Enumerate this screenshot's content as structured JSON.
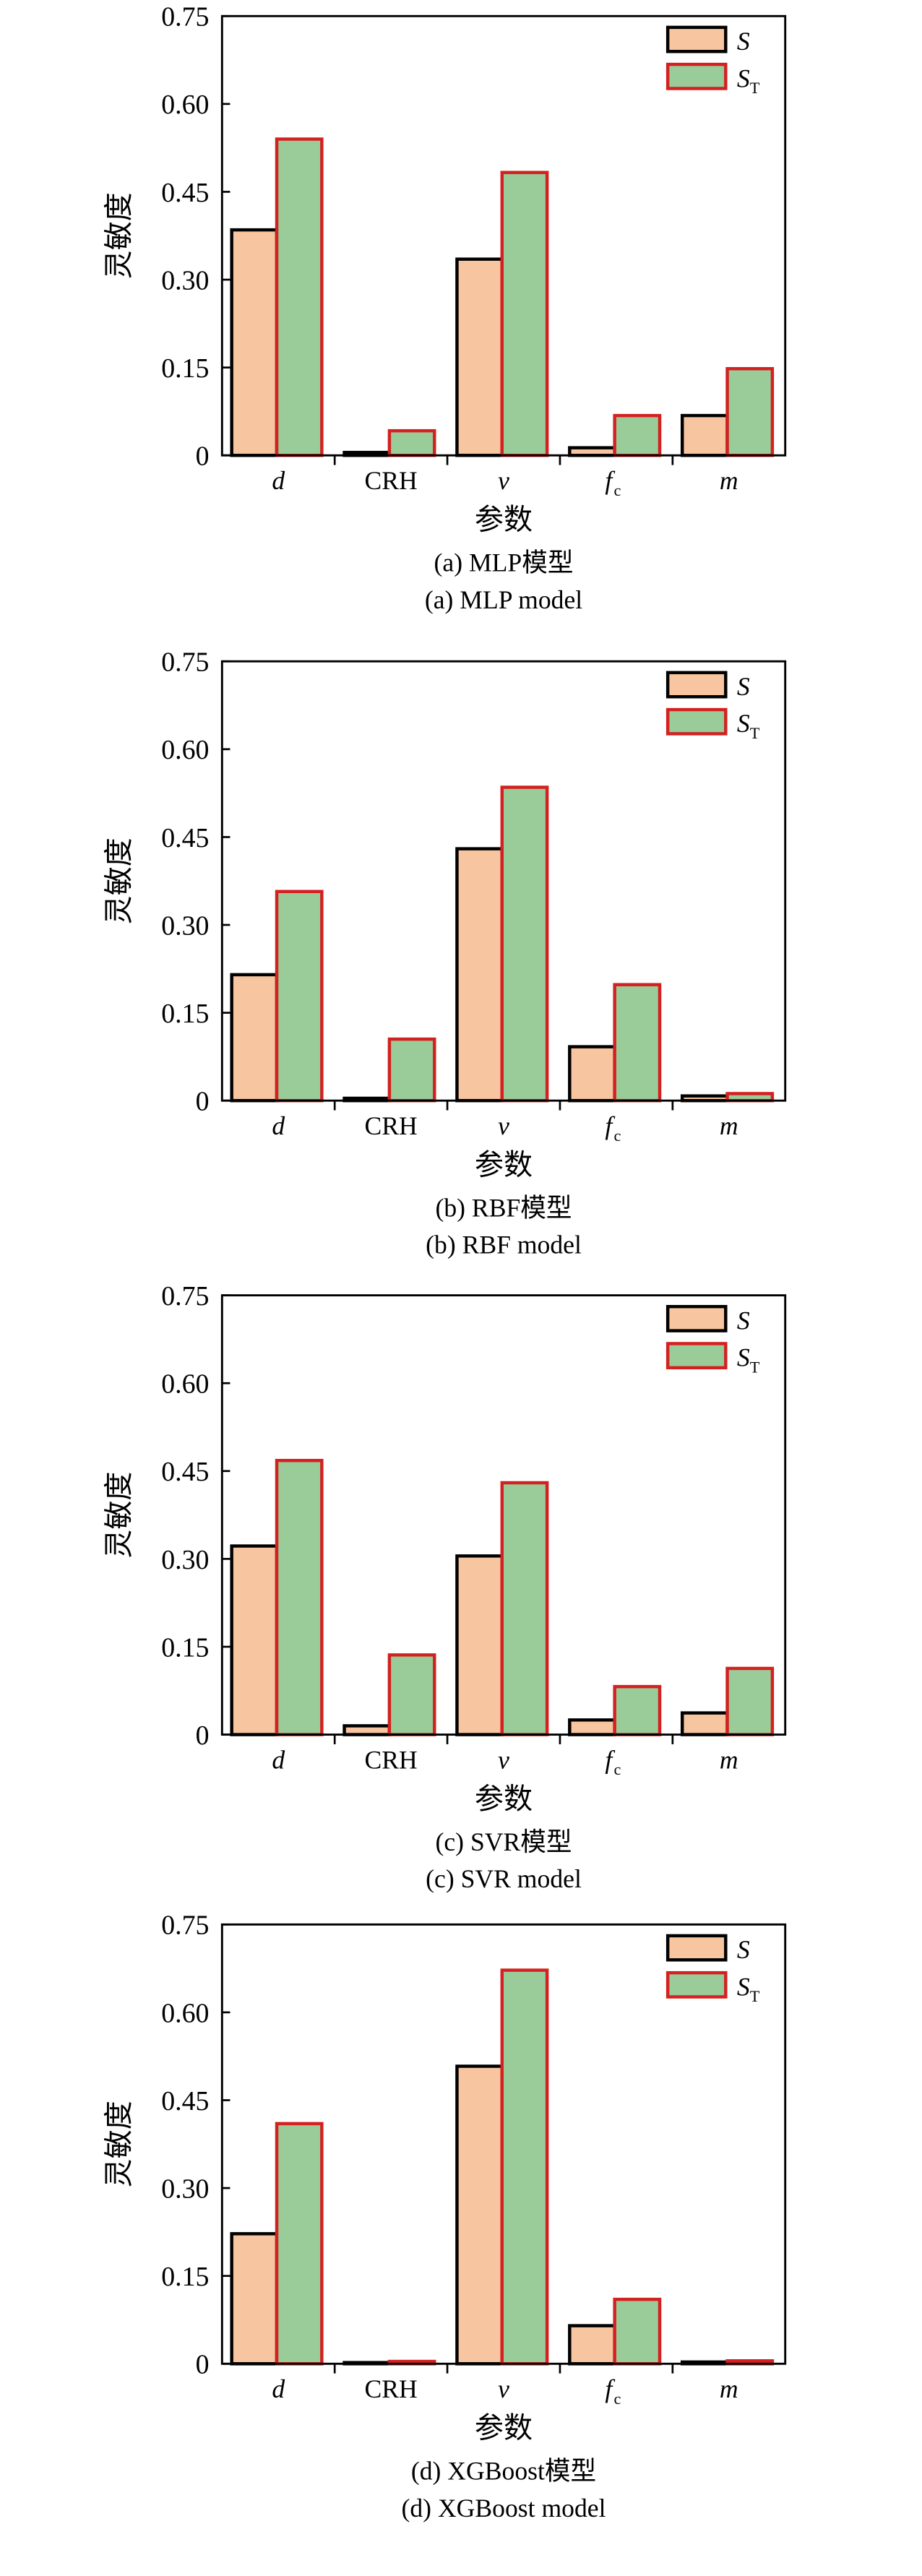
{
  "colors": {
    "S_fill": "#f7c59f",
    "S_stroke": "#000000",
    "ST_fill": "#99cc99",
    "ST_stroke": "#d42020"
  },
  "chart_data": [
    {
      "type": "bar",
      "caption_cn": "(a) MLP模型",
      "caption_en": "(a) MLP model",
      "ylabel": "灵敏度",
      "xlabel": "参数",
      "ylim": [
        0,
        0.75
      ],
      "yticks": [
        "0",
        "0.15",
        "0.30",
        "0.45",
        "0.60",
        "0.75"
      ],
      "categories": [
        "d",
        "CRH",
        "v",
        "f_c",
        "m"
      ],
      "legend": "top-right",
      "series": [
        {
          "name": "S",
          "values": [
            0.385,
            0.005,
            0.335,
            0.013,
            0.068
          ]
        },
        {
          "name": "S_T",
          "values": [
            0.54,
            0.042,
            0.483,
            0.068,
            0.148
          ]
        }
      ]
    },
    {
      "type": "bar",
      "caption_cn": "(b) RBF模型",
      "caption_en": "(b) RBF model",
      "ylabel": "灵敏度",
      "xlabel": "参数",
      "ylim": [
        0,
        0.75
      ],
      "yticks": [
        "0",
        "0.15",
        "0.30",
        "0.45",
        "0.60",
        "0.75"
      ],
      "categories": [
        "d",
        "CRH",
        "v",
        "f_c",
        "m"
      ],
      "legend": "top-right",
      "series": [
        {
          "name": "S",
          "values": [
            0.215,
            0.004,
            0.43,
            0.092,
            0.008
          ]
        },
        {
          "name": "S_T",
          "values": [
            0.357,
            0.105,
            0.535,
            0.198,
            0.012
          ]
        }
      ]
    },
    {
      "type": "bar",
      "caption_cn": "(c) SVR模型",
      "caption_en": "(c) SVR model",
      "ylabel": "灵敏度",
      "xlabel": "参数",
      "ylim": [
        0,
        0.75
      ],
      "yticks": [
        "0",
        "0.15",
        "0.30",
        "0.45",
        "0.60",
        "0.75"
      ],
      "categories": [
        "d",
        "CRH",
        "v",
        "f_c",
        "m"
      ],
      "legend": "top-right",
      "series": [
        {
          "name": "S",
          "values": [
            0.322,
            0.015,
            0.305,
            0.025,
            0.037
          ]
        },
        {
          "name": "S_T",
          "values": [
            0.468,
            0.136,
            0.43,
            0.082,
            0.113
          ]
        }
      ]
    },
    {
      "type": "bar",
      "caption_cn": "(d) XGBoost模型",
      "caption_en": "(d) XGBoost model",
      "ylabel": "灵敏度",
      "xlabel": "参数",
      "ylim": [
        0,
        0.75
      ],
      "yticks": [
        "0",
        "0.15",
        "0.30",
        "0.45",
        "0.60",
        "0.75"
      ],
      "categories": [
        "d",
        "CRH",
        "v",
        "f_c",
        "m"
      ],
      "legend": "top-right",
      "series": [
        {
          "name": "S",
          "values": [
            0.222,
            0.002,
            0.508,
            0.065,
            0.003
          ]
        },
        {
          "name": "S_T",
          "values": [
            0.41,
            0.004,
            0.672,
            0.11,
            0.005
          ]
        }
      ]
    }
  ]
}
